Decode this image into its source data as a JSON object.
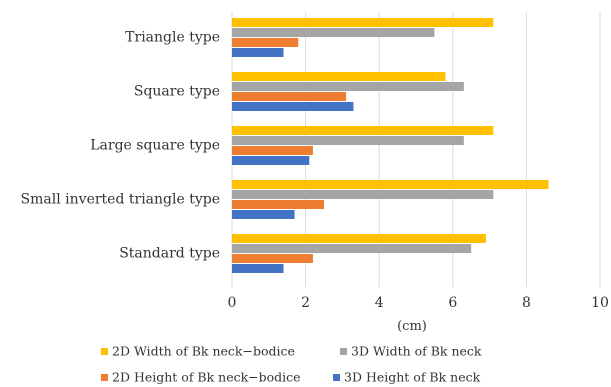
{
  "chart_data": {
    "type": "bar",
    "orientation": "horizontal",
    "categories": [
      "Triangle type",
      "Square type",
      "Large square type",
      "Small inverted triangle type",
      "Standard type"
    ],
    "series": [
      {
        "name": "2D Width of Bk neck−bodice",
        "color": "#ffc000",
        "values": [
          7.1,
          5.8,
          7.1,
          8.6,
          6.9
        ]
      },
      {
        "name": "3D Width of Bk neck",
        "color": "#a5a5a5",
        "values": [
          5.5,
          6.3,
          6.3,
          7.1,
          6.5
        ]
      },
      {
        "name": "2D Height of Bk neck−bodice",
        "color": "#ed7d31",
        "values": [
          1.8,
          3.1,
          2.2,
          2.5,
          2.2
        ]
      },
      {
        "name": "3D Height of Bk neck",
        "color": "#4472c4",
        "values": [
          1.4,
          3.3,
          2.1,
          1.7,
          1.4
        ]
      }
    ],
    "xlim": [
      0,
      10
    ],
    "xticks": [
      0,
      2,
      4,
      6,
      8,
      10
    ],
    "tick_labels": [
      "0",
      "2",
      "4",
      "6",
      "8",
      "10"
    ],
    "xlabel": "(cm)",
    "ylabel": "",
    "title": "",
    "grid": true,
    "legend_position": "bottom",
    "legend_rows": [
      [
        0,
        1
      ],
      [
        2,
        3
      ]
    ]
  }
}
